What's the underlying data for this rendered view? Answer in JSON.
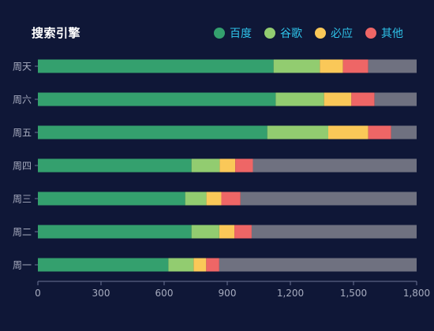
{
  "chart_data": {
    "type": "bar",
    "orientation": "horizontal",
    "stacked": true,
    "title": "搜索引擎",
    "categories": [
      "周一",
      "周二",
      "周三",
      "周四",
      "周五",
      "周六",
      "周天"
    ],
    "series": [
      {
        "name": "百度",
        "color": "#34a06e",
        "values": [
          620,
          730,
          700,
          730,
          1090,
          1130,
          1120
        ]
      },
      {
        "name": "谷歌",
        "color": "#92cc70",
        "values": [
          120,
          132,
          101,
          134,
          290,
          230,
          220
        ]
      },
      {
        "name": "必应",
        "color": "#fac858",
        "values": [
          60,
          72,
          71,
          74,
          190,
          130,
          110
        ]
      },
      {
        "name": "其他",
        "color": "#ee6666",
        "values": [
          62,
          82,
          91,
          84,
          109,
          110,
          120
        ]
      },
      {
        "name": "",
        "color": "#6f7180",
        "values": [
          938,
          784,
          837,
          778,
          121,
          200,
          230
        ]
      }
    ],
    "xlim": [
      0,
      1800
    ],
    "xticks": [
      0,
      300,
      600,
      900,
      1200,
      1500,
      1800
    ],
    "xtick_labels": [
      "0",
      "300",
      "600",
      "900",
      "1,200",
      "1,500",
      "1,800"
    ],
    "grid": false,
    "legend_position": "top-right"
  }
}
